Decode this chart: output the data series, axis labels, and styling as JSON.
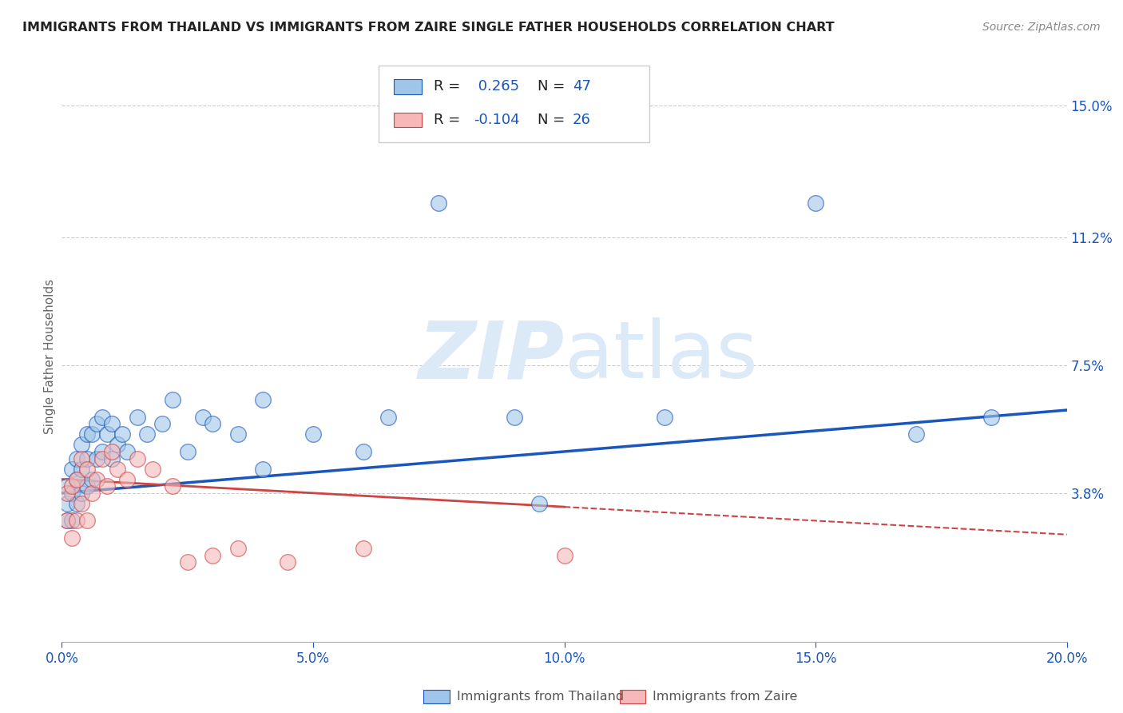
{
  "title": "IMMIGRANTS FROM THAILAND VS IMMIGRANTS FROM ZAIRE SINGLE FATHER HOUSEHOLDS CORRELATION CHART",
  "source": "Source: ZipAtlas.com",
  "ylabel": "Single Father Households",
  "x_min": 0.0,
  "x_max": 0.2,
  "y_min": -0.005,
  "y_max": 0.16,
  "x_ticks": [
    0.0,
    0.05,
    0.1,
    0.15,
    0.2
  ],
  "x_tick_labels": [
    "0.0%",
    "5.0%",
    "10.0%",
    "15.0%",
    "20.0%"
  ],
  "y_tick_labels_right": [
    "3.8%",
    "7.5%",
    "11.2%",
    "15.0%"
  ],
  "y_tick_vals_right": [
    0.038,
    0.075,
    0.112,
    0.15
  ],
  "color_thailand": "#9fc5e8",
  "color_zaire": "#f4b8b8",
  "color_trend_thailand": "#1a56bb",
  "color_trend_zaire": "#cc4444",
  "color_axis_labels": "#1a56bb",
  "color_title": "#222222",
  "color_source": "#888888",
  "color_watermark": "#dce9f7",
  "background_color": "#ffffff",
  "grid_color": "#cccccc",
  "thailand_x": [
    0.001,
    0.001,
    0.001,
    0.002,
    0.002,
    0.002,
    0.003,
    0.003,
    0.003,
    0.004,
    0.004,
    0.004,
    0.005,
    0.005,
    0.005,
    0.006,
    0.006,
    0.007,
    0.007,
    0.008,
    0.008,
    0.009,
    0.01,
    0.01,
    0.011,
    0.012,
    0.013,
    0.015,
    0.017,
    0.02,
    0.022,
    0.025,
    0.028,
    0.03,
    0.035,
    0.04,
    0.05,
    0.06,
    0.065,
    0.075,
    0.09,
    0.095,
    0.12,
    0.15,
    0.17,
    0.185,
    0.04
  ],
  "thailand_y": [
    0.03,
    0.035,
    0.04,
    0.03,
    0.038,
    0.045,
    0.035,
    0.042,
    0.048,
    0.038,
    0.045,
    0.052,
    0.04,
    0.048,
    0.055,
    0.042,
    0.055,
    0.048,
    0.058,
    0.05,
    0.06,
    0.055,
    0.048,
    0.058,
    0.052,
    0.055,
    0.05,
    0.06,
    0.055,
    0.058,
    0.065,
    0.05,
    0.06,
    0.058,
    0.055,
    0.045,
    0.055,
    0.05,
    0.06,
    0.122,
    0.06,
    0.035,
    0.06,
    0.122,
    0.055,
    0.06,
    0.065
  ],
  "zaire_x": [
    0.001,
    0.001,
    0.002,
    0.002,
    0.003,
    0.003,
    0.004,
    0.004,
    0.005,
    0.005,
    0.006,
    0.007,
    0.008,
    0.009,
    0.01,
    0.011,
    0.013,
    0.015,
    0.018,
    0.022,
    0.025,
    0.03,
    0.035,
    0.045,
    0.06,
    0.1
  ],
  "zaire_y": [
    0.03,
    0.038,
    0.025,
    0.04,
    0.03,
    0.042,
    0.035,
    0.048,
    0.03,
    0.045,
    0.038,
    0.042,
    0.048,
    0.04,
    0.05,
    0.045,
    0.042,
    0.048,
    0.045,
    0.04,
    0.018,
    0.02,
    0.022,
    0.018,
    0.022,
    0.02
  ],
  "trend_thai_x0": 0.0,
  "trend_thai_y0": 0.038,
  "trend_thai_x1": 0.2,
  "trend_thai_y1": 0.062,
  "trend_zaire_x0": 0.0,
  "trend_zaire_y0": 0.042,
  "trend_zaire_x1": 0.2,
  "trend_zaire_y1": 0.026
}
